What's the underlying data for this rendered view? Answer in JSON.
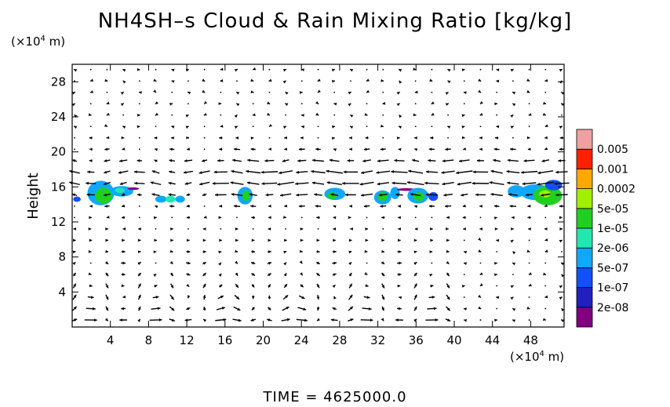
{
  "chart_data": {
    "type": "heatmap",
    "title": "NH4SH–s Cloud & Rain Mixing Ratio [kg/kg]",
    "ylabel": "Height",
    "y_unit_prefix": "(×10",
    "y_unit_exp": "4",
    "y_unit_suffix": " m)",
    "x_unit_prefix": "(×10",
    "x_unit_exp": "4",
    "x_unit_suffix": " m)",
    "xlim": [
      0,
      51.5
    ],
    "ylim": [
      0,
      30
    ],
    "x_ticks": [
      "4",
      "8",
      "12",
      "16",
      "20",
      "24",
      "28",
      "32",
      "36",
      "40",
      "44",
      "48"
    ],
    "x_tick_values": [
      4,
      8,
      12,
      16,
      20,
      24,
      28,
      32,
      36,
      40,
      44,
      48
    ],
    "y_ticks": [
      "4",
      "8",
      "12",
      "16",
      "20",
      "24",
      "28"
    ],
    "y_tick_values": [
      4,
      8,
      12,
      16,
      20,
      24,
      28
    ],
    "colorbar": {
      "labels": [
        "0.005",
        "0.001",
        "0.0002",
        "5e-05",
        "1e-05",
        "2e-06",
        "5e-07",
        "1e-07",
        "2e-08"
      ],
      "colors": [
        "#800080",
        "#2020c0",
        "#1050ff",
        "#10a8ff",
        "#20e8b0",
        "#20d020",
        "#a0f000",
        "#ffa800",
        "#ff2000",
        "#f0a0a0"
      ]
    },
    "cloud_patches": [
      {
        "x": 0.5,
        "y": 14.6,
        "rx": 0.4,
        "ry": 0.3,
        "color": "#1050ff"
      },
      {
        "x": 3.0,
        "y": 15.3,
        "rx": 1.4,
        "ry": 1.4,
        "color": "#10a8ff"
      },
      {
        "x": 3.3,
        "y": 15.0,
        "rx": 0.9,
        "ry": 0.9,
        "color": "#20d020"
      },
      {
        "x": 5.2,
        "y": 15.5,
        "rx": 1.2,
        "ry": 0.6,
        "color": "#10a8ff"
      },
      {
        "x": 5.0,
        "y": 15.6,
        "rx": 0.5,
        "ry": 0.3,
        "color": "#20e8b0"
      },
      {
        "x": 6.4,
        "y": 15.8,
        "rx": 0.6,
        "ry": 0.15,
        "color": "#800080"
      },
      {
        "x": 9.3,
        "y": 14.6,
        "rx": 0.6,
        "ry": 0.4,
        "color": "#10a8ff"
      },
      {
        "x": 10.3,
        "y": 14.6,
        "rx": 0.5,
        "ry": 0.4,
        "color": "#20e8b0"
      },
      {
        "x": 11.3,
        "y": 14.6,
        "rx": 0.5,
        "ry": 0.4,
        "color": "#10a8ff"
      },
      {
        "x": 18.1,
        "y": 15.0,
        "rx": 0.8,
        "ry": 1.0,
        "color": "#10a8ff"
      },
      {
        "x": 18.2,
        "y": 15.0,
        "rx": 0.4,
        "ry": 0.6,
        "color": "#20d020"
      },
      {
        "x": 27.5,
        "y": 15.2,
        "rx": 1.1,
        "ry": 0.7,
        "color": "#10a8ff"
      },
      {
        "x": 27.2,
        "y": 15.0,
        "rx": 0.5,
        "ry": 0.4,
        "color": "#20d020"
      },
      {
        "x": 32.5,
        "y": 14.8,
        "rx": 0.9,
        "ry": 0.8,
        "color": "#10a8ff"
      },
      {
        "x": 32.5,
        "y": 14.9,
        "rx": 0.5,
        "ry": 0.5,
        "color": "#20d020"
      },
      {
        "x": 33.8,
        "y": 15.3,
        "rx": 0.5,
        "ry": 0.7,
        "color": "#10a8ff"
      },
      {
        "x": 35.0,
        "y": 15.7,
        "rx": 1.0,
        "ry": 0.15,
        "color": "#800080"
      },
      {
        "x": 36.2,
        "y": 15.0,
        "rx": 1.1,
        "ry": 0.9,
        "color": "#10a8ff"
      },
      {
        "x": 36.3,
        "y": 14.9,
        "rx": 0.6,
        "ry": 0.5,
        "color": "#20d020"
      },
      {
        "x": 37.8,
        "y": 14.9,
        "rx": 0.5,
        "ry": 0.5,
        "color": "#1050ff"
      },
      {
        "x": 46.5,
        "y": 15.5,
        "rx": 0.9,
        "ry": 0.7,
        "color": "#10a8ff"
      },
      {
        "x": 48.5,
        "y": 15.4,
        "rx": 1.6,
        "ry": 0.9,
        "color": "#10a8ff"
      },
      {
        "x": 49.8,
        "y": 15.0,
        "rx": 1.5,
        "ry": 1.1,
        "color": "#20d020"
      },
      {
        "x": 50.4,
        "y": 16.2,
        "rx": 0.9,
        "ry": 0.6,
        "color": "#1050ff"
      },
      {
        "x": 49.5,
        "y": 15.2,
        "rx": 0.6,
        "ry": 0.4,
        "color": "#a0f000"
      }
    ]
  },
  "time_label": "TIME  =  4625000.0"
}
